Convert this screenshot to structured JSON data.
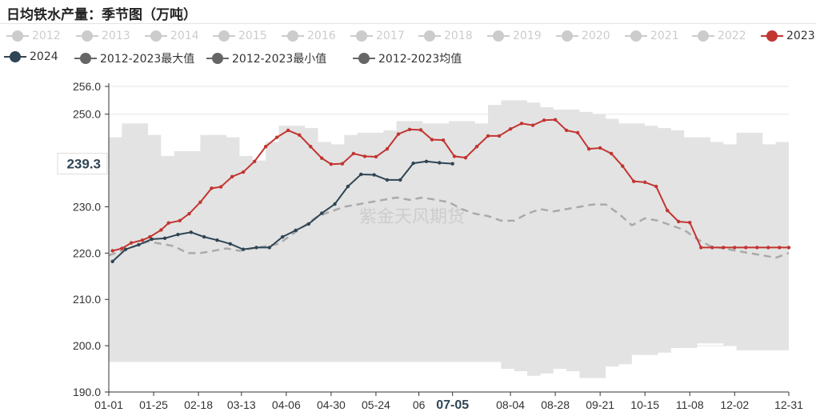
{
  "title": "日均铁水产量：季节图（万吨）",
  "watermark": "紫金天风期货",
  "pointer": {
    "y_value": "239.3",
    "x_value": "07-05"
  },
  "legend": [
    {
      "label": "2012",
      "color": "#cccccc",
      "active": false
    },
    {
      "label": "2013",
      "color": "#cccccc",
      "active": false
    },
    {
      "label": "2014",
      "color": "#cccccc",
      "active": false
    },
    {
      "label": "2015",
      "color": "#cccccc",
      "active": false
    },
    {
      "label": "2016",
      "color": "#cccccc",
      "active": false
    },
    {
      "label": "2017",
      "color": "#cccccc",
      "active": false
    },
    {
      "label": "2018",
      "color": "#cccccc",
      "active": false
    },
    {
      "label": "2019",
      "color": "#cccccc",
      "active": false
    },
    {
      "label": "2020",
      "color": "#cccccc",
      "active": false
    },
    {
      "label": "2021",
      "color": "#cccccc",
      "active": false
    },
    {
      "label": "2022",
      "color": "#cccccc",
      "active": false
    },
    {
      "label": "2023",
      "color": "#c23531",
      "active": true
    },
    {
      "label": "2024",
      "color": "#2f4554",
      "active": true
    },
    {
      "label": "2012-2023最大值",
      "color": "#666666",
      "active": true
    },
    {
      "label": "2012-2023最小值",
      "color": "#666666",
      "active": true
    },
    {
      "label": "2012-2023均值",
      "color": "#666666",
      "active": true
    }
  ],
  "chart_data": {
    "type": "line",
    "x_ticks": [
      "01-01",
      "01-25",
      "02-18",
      "03-13",
      "04-06",
      "04-30",
      "05-24",
      "06",
      "07-05",
      "08-04",
      "08-28",
      "09-21",
      "10-15",
      "11-08",
      "12-02",
      "12-31"
    ],
    "x_tick_days": [
      0,
      24,
      48,
      71,
      95,
      119,
      143,
      166,
      184,
      215,
      239,
      263,
      287,
      311,
      335,
      364
    ],
    "ylim": [
      190,
      256
    ],
    "y_ticks": [
      "190.0",
      "200.0",
      "210.0",
      "220.0",
      "230.0",
      "239.3",
      "250.0",
      "256.0"
    ],
    "y_tick_values": [
      190,
      200,
      210,
      220,
      230,
      239.3,
      250,
      256
    ],
    "range_band": {
      "name": "2012-2023最大值/最小值",
      "days": [
        0,
        7,
        14,
        21,
        28,
        35,
        42,
        49,
        56,
        63,
        70,
        77,
        84,
        91,
        98,
        105,
        112,
        119,
        126,
        133,
        140,
        147,
        154,
        161,
        168,
        175,
        182,
        189,
        196,
        203,
        210,
        217,
        224,
        231,
        238,
        245,
        252,
        259,
        266,
        273,
        280,
        287,
        294,
        301,
        308,
        315,
        322,
        329,
        336,
        343,
        350,
        357,
        364
      ],
      "max": [
        245.0,
        248.0,
        248.0,
        245.5,
        241.0,
        242.0,
        242.0,
        245.5,
        245.5,
        245.0,
        241.0,
        240.0,
        244.0,
        247.5,
        247.5,
        247.0,
        244.0,
        243.5,
        245.5,
        246.0,
        246.0,
        246.5,
        248.5,
        248.5,
        248.0,
        248.0,
        248.5,
        248.5,
        248.0,
        252.0,
        253.0,
        253.0,
        252.5,
        251.5,
        251.0,
        251.0,
        250.5,
        250.0,
        249.0,
        248.0,
        248.0,
        247.5,
        247.0,
        246.5,
        245.0,
        245.0,
        244.0,
        243.5,
        246.0,
        246.0,
        243.5,
        244.0,
        244.5
      ],
      "min": [
        196.5,
        196.5,
        196.5,
        196.5,
        196.5,
        196.5,
        196.5,
        196.5,
        196.5,
        196.5,
        196.5,
        196.5,
        196.5,
        196.5,
        196.5,
        196.5,
        196.5,
        196.5,
        196.5,
        196.5,
        196.5,
        196.5,
        196.5,
        196.5,
        196.5,
        196.5,
        196.5,
        196.5,
        196.5,
        196.5,
        195.0,
        194.5,
        193.5,
        194.0,
        195.0,
        194.5,
        193.0,
        193.0,
        195.5,
        196.0,
        198.0,
        198.0,
        198.5,
        199.5,
        199.5,
        200.5,
        200.5,
        200.0,
        199.0,
        199.0,
        199.0,
        199.0,
        203.0
      ]
    },
    "series": [
      {
        "name": "2012-2023均值",
        "days": [
          0,
          7,
          14,
          21,
          28,
          35,
          42,
          49,
          56,
          63,
          70,
          77,
          84,
          91,
          98,
          105,
          112,
          119,
          126,
          133,
          140,
          147,
          154,
          161,
          168,
          175,
          182,
          189,
          196,
          203,
          210,
          217,
          224,
          231,
          238,
          245,
          252,
          259,
          266,
          273,
          280,
          287,
          294,
          301,
          308,
          315,
          322,
          329,
          336,
          343,
          350,
          357,
          364
        ],
        "values": [
          219.5,
          220.5,
          221.5,
          222.5,
          222.0,
          221.5,
          220.0,
          220.0,
          220.5,
          221.0,
          220.5,
          221.0,
          221.5,
          222.0,
          224.0,
          226.0,
          228.0,
          229.0,
          230.0,
          230.5,
          231.0,
          231.5,
          232.0,
          231.5,
          232.0,
          231.5,
          231.0,
          229.5,
          228.5,
          228.0,
          227.0,
          227.0,
          228.5,
          229.5,
          229.0,
          229.5,
          230.0,
          230.5,
          230.5,
          228.5,
          226.0,
          227.5,
          227.0,
          226.0,
          225.0,
          223.0,
          221.5,
          221.0,
          220.5,
          220.0,
          219.5,
          219.0,
          220.0
        ]
      },
      {
        "name": "2023",
        "days": [
          2,
          7,
          12,
          18,
          22,
          28,
          32,
          38,
          43,
          49,
          55,
          60,
          66,
          72,
          78,
          84,
          90,
          96,
          102,
          108,
          114,
          119,
          125,
          131,
          137,
          143,
          149,
          155,
          161,
          167,
          173,
          179,
          185,
          191,
          197,
          203,
          209,
          215,
          221,
          227,
          233,
          239,
          245,
          251,
          257,
          263,
          269,
          275,
          281,
          287,
          293,
          299,
          305,
          311,
          317,
          323,
          329,
          335,
          341,
          347,
          353,
          359,
          364
        ],
        "values": [
          220.5,
          221.0,
          222.2,
          222.8,
          223.5,
          225.0,
          226.5,
          227.0,
          228.5,
          231.0,
          234.0,
          234.3,
          236.5,
          237.5,
          239.8,
          243.0,
          245.0,
          246.5,
          245.5,
          243.0,
          240.5,
          239.2,
          239.3,
          241.5,
          240.9,
          240.8,
          242.5,
          245.7,
          246.7,
          246.6,
          244.5,
          244.4,
          240.9,
          240.6,
          243.0,
          245.3,
          245.3,
          246.8,
          248.0,
          247.6,
          248.7,
          248.8,
          246.5,
          246.0,
          242.5,
          242.7,
          241.5,
          238.8,
          235.5,
          235.3,
          234.4,
          229.2,
          226.8,
          226.6,
          221.2,
          221.2,
          221.2,
          221.2,
          221.2,
          221.2,
          221.2,
          221.2,
          221.2
        ]
      },
      {
        "name": "2024",
        "days": [
          2,
          9,
          16,
          23,
          30,
          37,
          44,
          51,
          58,
          65,
          72,
          79,
          86,
          93,
          100,
          107,
          114,
          121,
          128,
          135,
          142,
          149,
          156,
          163,
          170,
          177,
          184
        ],
        "values": [
          218.2,
          220.8,
          221.8,
          223.0,
          223.2,
          224.0,
          224.5,
          223.5,
          222.8,
          222.0,
          220.8,
          221.2,
          221.2,
          223.5,
          224.9,
          226.3,
          228.6,
          230.6,
          234.4,
          237.0,
          236.9,
          235.8,
          235.8,
          239.4,
          239.8,
          239.5,
          239.3
        ]
      }
    ]
  }
}
